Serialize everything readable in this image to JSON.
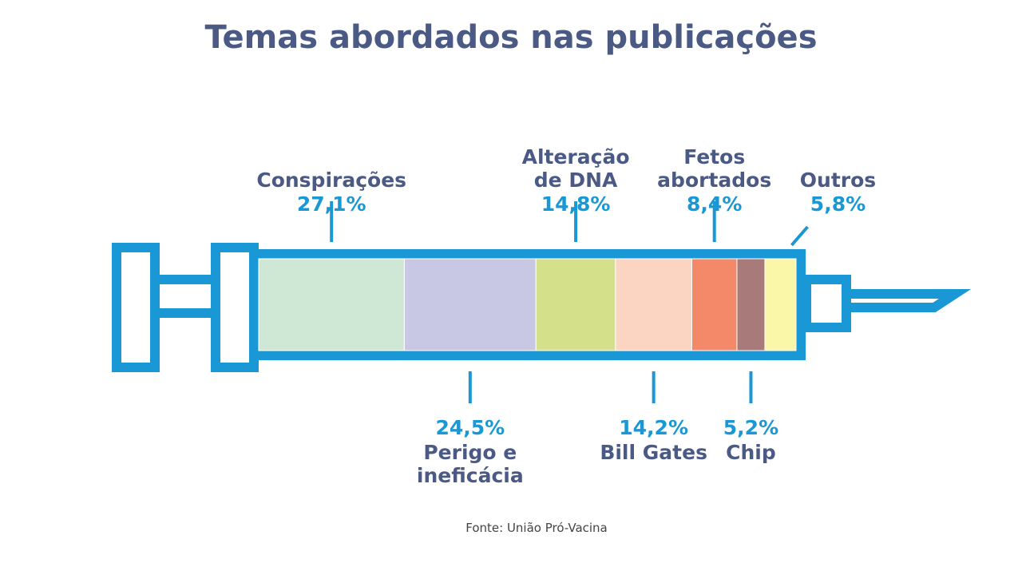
{
  "chart_data": {
    "type": "bar",
    "orientation": "horizontal",
    "stacked": true,
    "title": "Temas abordados nas publicações",
    "categories": [
      "Conspirações",
      "Perigo e ineficácia",
      "Alteração de DNA",
      "Bill Gates",
      "Fetos abortados",
      "Chip",
      "Outros"
    ],
    "values": [
      27.1,
      24.5,
      14.8,
      14.2,
      8.4,
      5.2,
      5.8
    ],
    "value_labels": [
      "27,1%",
      "24,5%",
      "14,8%",
      "14,2%",
      "8,4%",
      "5,2%",
      "5,8%"
    ],
    "colors": [
      "#cfe8d6",
      "#c9c8e4",
      "#d5e08a",
      "#fbd5c2",
      "#f4896a",
      "#a87a7a",
      "#fbf7a8"
    ],
    "source": "Fonte: União Pró-Vacina"
  }
}
